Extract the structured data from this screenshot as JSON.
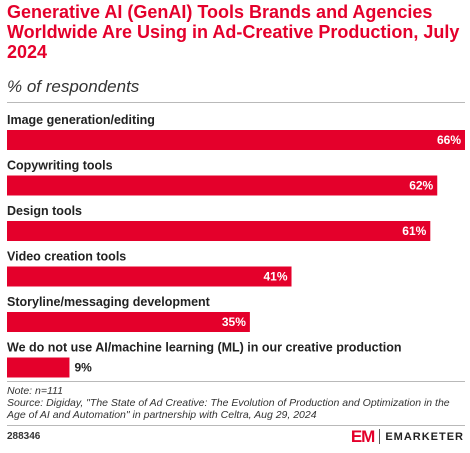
{
  "header": {
    "title": "Generative AI (GenAI) Tools Brands and Agencies Worldwide Are Using in Ad-Creative Production, July 2024",
    "subtitle": "% of respondents"
  },
  "chart_data": {
    "type": "bar",
    "orientation": "horizontal",
    "categories": [
      "Image generation/editing",
      "Copywriting tools",
      "Design tools",
      "Video creation tools",
      "Storyline/messaging development",
      "We do not use AI/machine learning (ML) in our creative production"
    ],
    "values": [
      66,
      62,
      61,
      41,
      35,
      9
    ],
    "value_labels": [
      "66%",
      "62%",
      "61%",
      "41%",
      "35%",
      "9%"
    ],
    "xlim": [
      0,
      66
    ],
    "bar_color": "#e4002b",
    "grid": false
  },
  "footer": {
    "note": "Note: n=111",
    "source_line1": "Source: Digiday, \"The State of Ad Creative: The Evolution of Production and Optimization in the",
    "source_line2": "Age of AI and Automation\" in partnership with Celtra, Aug 29, 2024",
    "chart_id": "288346",
    "brand_mark": "EM",
    "brand_name": "EMARKETER"
  },
  "colors": {
    "accent": "#e4002b",
    "text": "#222222"
  }
}
